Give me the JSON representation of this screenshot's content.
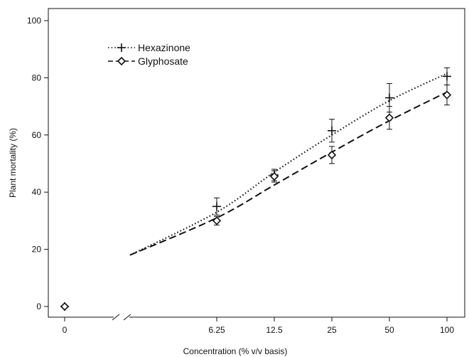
{
  "chart_data": {
    "type": "line",
    "xlabel": "Concentration (% v/v basis)",
    "ylabel": "Plant mortality (%)",
    "x_ticks": [
      "0",
      "6.25",
      "12.5",
      "25",
      "50",
      "100"
    ],
    "x_scale": "log2 with axis break between 0 and 6.25",
    "y_ticks": [
      "0",
      "20",
      "40",
      "60",
      "80",
      "100"
    ],
    "ylim": [
      0,
      100
    ],
    "grid": false,
    "legend_position": "top-left",
    "series": [
      {
        "name": "Hexazinone",
        "marker": "plus",
        "line_style": "dotted",
        "color": "#111111",
        "points": [
          {
            "x": 0,
            "y": 0,
            "err": 0
          },
          {
            "x": 6.25,
            "y": 35,
            "err": 3
          },
          {
            "x": 12.5,
            "y": 46,
            "err": 2
          },
          {
            "x": 25,
            "y": 61.5,
            "err": 4
          },
          {
            "x": 50,
            "y": 73,
            "err": 5
          },
          {
            "x": 100,
            "y": 80.5,
            "err": 3
          }
        ],
        "fit_curve": [
          {
            "x": 2.2,
            "y": 18
          },
          {
            "x": 6.25,
            "y": 33
          },
          {
            "x": 12.5,
            "y": 47
          },
          {
            "x": 25,
            "y": 60
          },
          {
            "x": 50,
            "y": 72
          },
          {
            "x": 100,
            "y": 81.5
          }
        ]
      },
      {
        "name": "Glyphosate",
        "marker": "diamond",
        "line_style": "dashed",
        "color": "#111111",
        "points": [
          {
            "x": 0,
            "y": 0,
            "err": 0
          },
          {
            "x": 6.25,
            "y": 30,
            "err": 1.5
          },
          {
            "x": 12.5,
            "y": 45.5,
            "err": 2
          },
          {
            "x": 25,
            "y": 53,
            "err": 3
          },
          {
            "x": 50,
            "y": 66,
            "err": 4
          },
          {
            "x": 100,
            "y": 74,
            "err": 3.5
          }
        ],
        "fit_curve": [
          {
            "x": 2.2,
            "y": 18
          },
          {
            "x": 6.25,
            "y": 31
          },
          {
            "x": 12.5,
            "y": 42.5
          },
          {
            "x": 25,
            "y": 54
          },
          {
            "x": 50,
            "y": 65
          },
          {
            "x": 100,
            "y": 75
          }
        ]
      }
    ]
  }
}
